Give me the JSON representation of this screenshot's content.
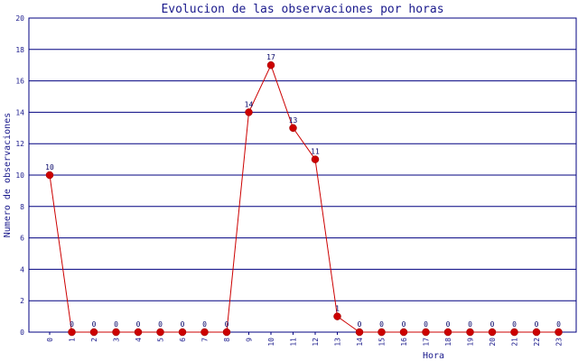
{
  "chart_data": {
    "type": "line",
    "title": "Evolucion de las observaciones por horas",
    "xlabel": "Hora",
    "ylabel": "Numero de observaciones",
    "categories": [
      "0",
      "1",
      "2",
      "3",
      "4",
      "5",
      "6",
      "7",
      "8",
      "9",
      "10",
      "11",
      "12",
      "13",
      "14",
      "15",
      "16",
      "17",
      "18",
      "19",
      "20",
      "21",
      "22",
      "23"
    ],
    "values": [
      10,
      0,
      0,
      0,
      0,
      0,
      0,
      0,
      0,
      14,
      17,
      13,
      11,
      1,
      0,
      0,
      0,
      0,
      0,
      0,
      0,
      0,
      0,
      0
    ],
    "ylim": [
      0,
      20
    ],
    "yticks": [
      0,
      2,
      4,
      6,
      8,
      10,
      12,
      14,
      16,
      18,
      20
    ],
    "grid": true,
    "colors": {
      "line": "#cc0000",
      "marker": "#cc0000",
      "grid": "#000080",
      "text": "#1a1a8c"
    }
  }
}
